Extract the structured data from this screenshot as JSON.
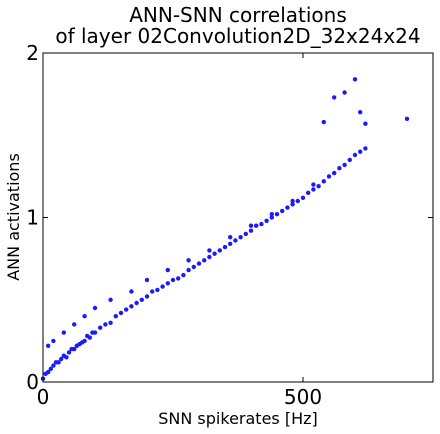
{
  "chart_data": {
    "type": "scatter",
    "title": "ANN-SNN correlations",
    "subtitle": "of layer 02Convolution2D_32x24x24",
    "xlabel": "SNN spikerates [Hz]",
    "ylabel": "ANN activations",
    "xlim": [
      0,
      750
    ],
    "ylim": [
      0,
      2.0
    ],
    "x_ticks": [
      0,
      500
    ],
    "x_tick_labels": [
      "0",
      "500"
    ],
    "y_ticks": [
      0,
      1,
      2
    ],
    "y_tick_labels": [
      "0",
      "1",
      "2"
    ],
    "grid": false,
    "legend": "none",
    "marker_color": "#1a1aff",
    "series": [
      {
        "x": [
          0,
          5,
          10,
          15,
          20,
          25,
          30,
          35,
          40,
          45,
          50,
          55,
          60,
          65,
          70,
          75,
          80,
          85,
          90,
          95,
          100,
          110,
          120,
          130,
          140,
          150,
          160,
          170,
          180,
          190,
          200,
          210,
          220,
          230,
          240,
          250,
          260,
          270,
          280,
          290,
          300,
          310,
          320,
          330,
          340,
          350,
          360,
          370,
          380,
          390,
          400,
          410,
          420,
          430,
          440,
          450,
          460,
          470,
          480,
          490,
          500,
          510,
          520,
          530,
          540,
          550,
          560,
          570,
          580,
          590,
          600,
          610,
          620,
          700,
          540,
          560,
          600,
          610,
          580,
          620,
          10,
          20,
          40,
          60,
          80,
          100,
          130,
          170,
          200,
          240,
          280,
          320,
          360,
          400,
          440,
          480,
          520
        ],
        "y": [
          0.02,
          0.05,
          0.06,
          0.08,
          0.1,
          0.12,
          0.12,
          0.14,
          0.16,
          0.15,
          0.18,
          0.2,
          0.2,
          0.22,
          0.23,
          0.24,
          0.25,
          0.28,
          0.27,
          0.3,
          0.3,
          0.33,
          0.35,
          0.36,
          0.4,
          0.42,
          0.44,
          0.46,
          0.48,
          0.5,
          0.52,
          0.55,
          0.56,
          0.58,
          0.6,
          0.62,
          0.63,
          0.65,
          0.68,
          0.7,
          0.72,
          0.74,
          0.76,
          0.78,
          0.8,
          0.82,
          0.84,
          0.86,
          0.88,
          0.9,
          0.92,
          0.95,
          0.96,
          0.98,
          1.0,
          1.02,
          1.04,
          1.06,
          1.08,
          1.1,
          1.12,
          1.15,
          1.17,
          1.19,
          1.22,
          1.25,
          1.27,
          1.3,
          1.32,
          1.35,
          1.38,
          1.4,
          1.42,
          1.6,
          1.58,
          1.73,
          1.84,
          1.64,
          1.76,
          1.57,
          0.22,
          0.25,
          0.3,
          0.35,
          0.4,
          0.45,
          0.5,
          0.55,
          0.62,
          0.68,
          0.74,
          0.8,
          0.88,
          0.95,
          1.02,
          1.1,
          1.2
        ]
      }
    ]
  }
}
